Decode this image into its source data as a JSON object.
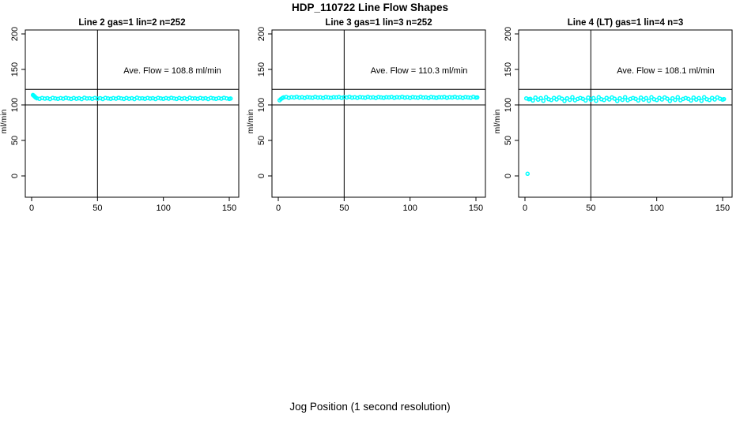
{
  "page": {
    "title": "HDP_110722  Line Flow Shapes",
    "xlabel": "Jog Position (1 second resolution)"
  },
  "chart_data": {
    "type": "scatter",
    "layout": "1 row x 3 panels",
    "point_color": "#00FFFF",
    "axis_color": "#000000",
    "x_ticks": [
      0,
      50,
      100,
      150
    ],
    "y_ticks": [
      0,
      50,
      100,
      150,
      200
    ],
    "ylabel": "ml/min",
    "xlim": [
      -5,
      157
    ],
    "ylim": [
      -30,
      205
    ],
    "grid": false,
    "ref_hlines": [
      100,
      122
    ],
    "ref_vline": 50,
    "panels": [
      {
        "title": "Line 2 gas=1 lin=2 n=252",
        "annotation": "Ave. Flow =  108.8  ml/min",
        "ave_flow": 108.8,
        "n": 252,
        "points": [
          [
            1,
            114
          ],
          [
            1.5,
            113.2
          ],
          [
            2,
            112.4
          ],
          [
            2.5,
            111.4
          ],
          [
            3,
            110.6
          ],
          [
            4,
            109.3
          ],
          [
            6,
            108.6
          ],
          [
            8,
            109.8
          ],
          [
            10,
            108.9
          ],
          [
            12,
            109.5
          ],
          [
            14,
            108.3
          ],
          [
            16,
            109.9
          ],
          [
            18,
            109.1
          ],
          [
            20,
            108.5
          ],
          [
            22,
            109.6
          ],
          [
            24,
            108.8
          ],
          [
            26,
            110.0
          ],
          [
            28,
            109.2
          ],
          [
            30,
            108.4
          ],
          [
            32,
            109.7
          ],
          [
            34,
            108.7
          ],
          [
            36,
            109.4
          ],
          [
            38,
            108.2
          ],
          [
            40,
            110.1
          ],
          [
            42,
            109.0
          ],
          [
            44,
            109.3
          ],
          [
            46,
            108.6
          ],
          [
            48,
            109.8
          ],
          [
            50,
            108.9
          ],
          [
            52,
            109.5
          ],
          [
            54,
            108.3
          ],
          [
            56,
            109.9
          ],
          [
            58,
            109.1
          ],
          [
            60,
            108.5
          ],
          [
            62,
            109.6
          ],
          [
            64,
            108.8
          ],
          [
            66,
            110.0
          ],
          [
            68,
            109.2
          ],
          [
            70,
            108.4
          ],
          [
            72,
            109.7
          ],
          [
            74,
            108.7
          ],
          [
            76,
            109.4
          ],
          [
            78,
            108.2
          ],
          [
            80,
            110.1
          ],
          [
            82,
            109.0
          ],
          [
            84,
            109.3
          ],
          [
            86,
            108.6
          ],
          [
            88,
            109.8
          ],
          [
            90,
            108.9
          ],
          [
            92,
            109.5
          ],
          [
            94,
            108.3
          ],
          [
            96,
            109.9
          ],
          [
            98,
            109.1
          ],
          [
            100,
            108.5
          ],
          [
            102,
            109.6
          ],
          [
            104,
            108.8
          ],
          [
            106,
            110.0
          ],
          [
            108,
            109.2
          ],
          [
            110,
            108.4
          ],
          [
            112,
            109.7
          ],
          [
            114,
            108.7
          ],
          [
            116,
            109.4
          ],
          [
            118,
            108.2
          ],
          [
            120,
            110.1
          ],
          [
            122,
            109.0
          ],
          [
            124,
            109.3
          ],
          [
            126,
            108.6
          ],
          [
            128,
            109.8
          ],
          [
            130,
            108.9
          ],
          [
            132,
            109.5
          ],
          [
            134,
            108.3
          ],
          [
            136,
            109.9
          ],
          [
            138,
            109.1
          ],
          [
            140,
            108.5
          ],
          [
            142,
            109.6
          ],
          [
            144,
            108.8
          ],
          [
            146,
            110.0
          ],
          [
            148,
            109.2
          ],
          [
            150,
            108.4
          ],
          [
            151,
            109.0
          ]
        ]
      },
      {
        "title": "Line 3 gas=1 lin=3 n=252",
        "annotation": "Ave. Flow =  110.3  ml/min",
        "ave_flow": 110.3,
        "n": 252,
        "points": [
          [
            1,
            106.5
          ],
          [
            2,
            108.2
          ],
          [
            3,
            109.6
          ],
          [
            4,
            110.5
          ],
          [
            6,
            111.2
          ],
          [
            8,
            110.0
          ],
          [
            10,
            110.9
          ],
          [
            12,
            110.4
          ],
          [
            14,
            111.4
          ],
          [
            16,
            110.2
          ],
          [
            18,
            110.8
          ],
          [
            20,
            109.9
          ],
          [
            22,
            111.0
          ],
          [
            24,
            110.6
          ],
          [
            26,
            110.1
          ],
          [
            28,
            111.3
          ],
          [
            30,
            110.3
          ],
          [
            32,
            110.7
          ],
          [
            34,
            109.8
          ],
          [
            36,
            111.1
          ],
          [
            38,
            110.5
          ],
          [
            40,
            110.0
          ],
          [
            42,
            110.9
          ],
          [
            44,
            110.5
          ],
          [
            46,
            111.2
          ],
          [
            48,
            110.0
          ],
          [
            50,
            110.9
          ],
          [
            52,
            110.4
          ],
          [
            54,
            111.4
          ],
          [
            56,
            110.2
          ],
          [
            58,
            110.8
          ],
          [
            60,
            109.9
          ],
          [
            62,
            111.0
          ],
          [
            64,
            110.6
          ],
          [
            66,
            110.1
          ],
          [
            68,
            111.3
          ],
          [
            70,
            110.3
          ],
          [
            72,
            110.7
          ],
          [
            74,
            109.8
          ],
          [
            76,
            111.1
          ],
          [
            78,
            110.5
          ],
          [
            80,
            110.0
          ],
          [
            82,
            110.9
          ],
          [
            84,
            110.5
          ],
          [
            86,
            111.2
          ],
          [
            88,
            110.0
          ],
          [
            90,
            110.9
          ],
          [
            92,
            110.4
          ],
          [
            94,
            111.4
          ],
          [
            96,
            110.2
          ],
          [
            98,
            110.8
          ],
          [
            100,
            109.9
          ],
          [
            102,
            111.0
          ],
          [
            104,
            110.6
          ],
          [
            106,
            110.1
          ],
          [
            108,
            111.3
          ],
          [
            110,
            110.3
          ],
          [
            112,
            110.7
          ],
          [
            114,
            109.8
          ],
          [
            116,
            111.1
          ],
          [
            118,
            110.5
          ],
          [
            120,
            110.0
          ],
          [
            122,
            110.9
          ],
          [
            124,
            110.5
          ],
          [
            126,
            111.2
          ],
          [
            128,
            110.0
          ],
          [
            130,
            110.9
          ],
          [
            132,
            110.4
          ],
          [
            134,
            111.4
          ],
          [
            136,
            110.2
          ],
          [
            138,
            110.8
          ],
          [
            140,
            109.9
          ],
          [
            142,
            111.0
          ],
          [
            144,
            110.6
          ],
          [
            146,
            110.1
          ],
          [
            148,
            111.3
          ],
          [
            150,
            110.3
          ],
          [
            151,
            110.6
          ]
        ]
      },
      {
        "title": "Line 4 (LT) gas=1 lin=4 n=3",
        "annotation": "Ave. Flow =  108.1  ml/min",
        "ave_flow": 108.1,
        "n": 3,
        "outlier": [
          2,
          3
        ],
        "points": [
          [
            1,
            109.2
          ],
          [
            2,
            3
          ],
          [
            3,
            108.0
          ],
          [
            4,
            108.5
          ],
          [
            6,
            106.2
          ],
          [
            8,
            110.3
          ],
          [
            10,
            107.4
          ],
          [
            12,
            109.6
          ],
          [
            14,
            105.8
          ],
          [
            16,
            110.8
          ],
          [
            18,
            108.0
          ],
          [
            20,
            106.9
          ],
          [
            22,
            109.9
          ],
          [
            24,
            107.7
          ],
          [
            26,
            110.5
          ],
          [
            28,
            108.8
          ],
          [
            30,
            105.5
          ],
          [
            32,
            109.3
          ],
          [
            34,
            107.1
          ],
          [
            36,
            110.9
          ],
          [
            38,
            106.5
          ],
          [
            40,
            108.4
          ],
          [
            42,
            109.8
          ],
          [
            44,
            108.5
          ],
          [
            46,
            106.2
          ],
          [
            48,
            110.3
          ],
          [
            50,
            107.4
          ],
          [
            52,
            109.6
          ],
          [
            54,
            105.8
          ],
          [
            56,
            110.8
          ],
          [
            58,
            108.0
          ],
          [
            60,
            106.9
          ],
          [
            62,
            109.9
          ],
          [
            64,
            107.7
          ],
          [
            66,
            110.5
          ],
          [
            68,
            108.8
          ],
          [
            70,
            105.5
          ],
          [
            72,
            109.3
          ],
          [
            74,
            107.1
          ],
          [
            76,
            110.9
          ],
          [
            78,
            106.5
          ],
          [
            80,
            108.4
          ],
          [
            82,
            109.8
          ],
          [
            84,
            108.5
          ],
          [
            86,
            106.2
          ],
          [
            88,
            110.3
          ],
          [
            90,
            107.4
          ],
          [
            92,
            109.6
          ],
          [
            94,
            105.8
          ],
          [
            96,
            110.8
          ],
          [
            98,
            108.0
          ],
          [
            100,
            106.9
          ],
          [
            102,
            109.9
          ],
          [
            104,
            107.7
          ],
          [
            106,
            110.5
          ],
          [
            108,
            108.8
          ],
          [
            110,
            105.5
          ],
          [
            112,
            109.3
          ],
          [
            114,
            107.1
          ],
          [
            116,
            110.9
          ],
          [
            118,
            106.5
          ],
          [
            120,
            108.4
          ],
          [
            122,
            109.8
          ],
          [
            124,
            108.5
          ],
          [
            126,
            106.2
          ],
          [
            128,
            110.3
          ],
          [
            130,
            107.4
          ],
          [
            132,
            109.6
          ],
          [
            134,
            105.8
          ],
          [
            136,
            110.8
          ],
          [
            138,
            108.0
          ],
          [
            140,
            106.9
          ],
          [
            142,
            109.9
          ],
          [
            144,
            107.7
          ],
          [
            146,
            110.5
          ],
          [
            148,
            108.8
          ],
          [
            150,
            107.4
          ],
          [
            151,
            108.2
          ]
        ]
      }
    ]
  }
}
